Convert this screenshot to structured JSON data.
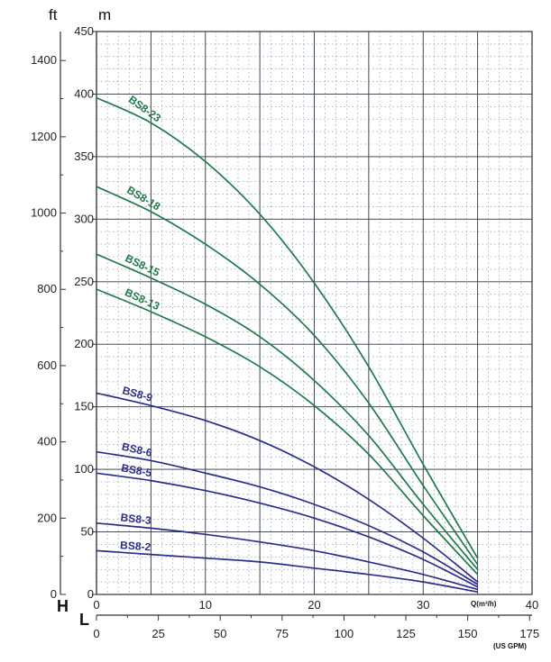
{
  "chart_data": {
    "type": "line",
    "axes": {
      "y_m_unit": "m",
      "y_ft_unit": "ft",
      "y_left_letter": "H",
      "x_q_unit": "Q(m³/h)",
      "x_gpm_letter": "L",
      "x_gpm_unit": "(US GPM)",
      "y_m_range": [
        0,
        450
      ],
      "y_m_ticks": [
        0,
        50,
        100,
        150,
        200,
        250,
        300,
        350,
        400,
        450
      ],
      "y_ft_range": [
        0,
        1476
      ],
      "y_ft_ticks": [
        0,
        200,
        400,
        600,
        800,
        1000,
        1200,
        1400
      ],
      "x_q_range": [
        0,
        40
      ],
      "x_q_ticks": [
        0,
        10,
        20,
        30,
        40
      ],
      "x_gpm_range": [
        0,
        176
      ],
      "x_gpm_ticks": [
        0,
        25,
        50,
        75,
        100,
        125,
        150,
        175
      ],
      "grid": true
    },
    "series": [
      {
        "name": "BS8-23",
        "color": "#1f7a4a",
        "x": [
          0,
          5,
          10,
          15,
          20,
          25,
          30,
          35
        ],
        "y": [
          397,
          377,
          346,
          304,
          249,
          182,
          104,
          29
        ]
      },
      {
        "name": "BS8-18",
        "color": "#1f7a4a",
        "x": [
          0,
          5,
          10,
          15,
          20,
          25,
          30,
          35
        ],
        "y": [
          326,
          306,
          280,
          248,
          207,
          153,
          87,
          24
        ]
      },
      {
        "name": "BS8-15",
        "color": "#1f7a4a",
        "x": [
          0,
          5,
          10,
          15,
          20,
          25,
          30,
          35
        ],
        "y": [
          272,
          253,
          232,
          206,
          171,
          127,
          72,
          20
        ]
      },
      {
        "name": "BS8-13",
        "color": "#1f7a4a",
        "x": [
          0,
          5,
          10,
          15,
          20,
          25,
          30,
          35
        ],
        "y": [
          244,
          226,
          206,
          182,
          151,
          112,
          63,
          16
        ]
      },
      {
        "name": "BS8-9",
        "color": "#2a2e8a",
        "x": [
          0,
          5,
          10,
          15,
          20,
          25,
          30,
          35
        ],
        "y": [
          161,
          151,
          139,
          123,
          102,
          76,
          45,
          10
        ]
      },
      {
        "name": "BS8-6",
        "color": "#2a2e8a",
        "x": [
          0,
          5,
          10,
          15,
          20,
          25,
          30,
          35
        ],
        "y": [
          114,
          107,
          97,
          86,
          72,
          55,
          34,
          8
        ]
      },
      {
        "name": "BS8-5",
        "color": "#2a2e8a",
        "x": [
          0,
          5,
          10,
          15,
          20,
          25,
          30,
          35
        ],
        "y": [
          97,
          91,
          83,
          73,
          61,
          46,
          28,
          6
        ]
      },
      {
        "name": "BS8-3",
        "color": "#2a2e8a",
        "x": [
          0,
          5,
          10,
          15,
          20,
          25,
          30,
          35
        ],
        "y": [
          57,
          53,
          48,
          42,
          35,
          26,
          16,
          4
        ]
      },
      {
        "name": "BS8-2",
        "color": "#2a2e8a",
        "x": [
          0,
          5,
          10,
          15,
          20,
          25,
          30,
          35
        ],
        "y": [
          35,
          32,
          29,
          26,
          21,
          16,
          10,
          2
        ]
      }
    ]
  }
}
